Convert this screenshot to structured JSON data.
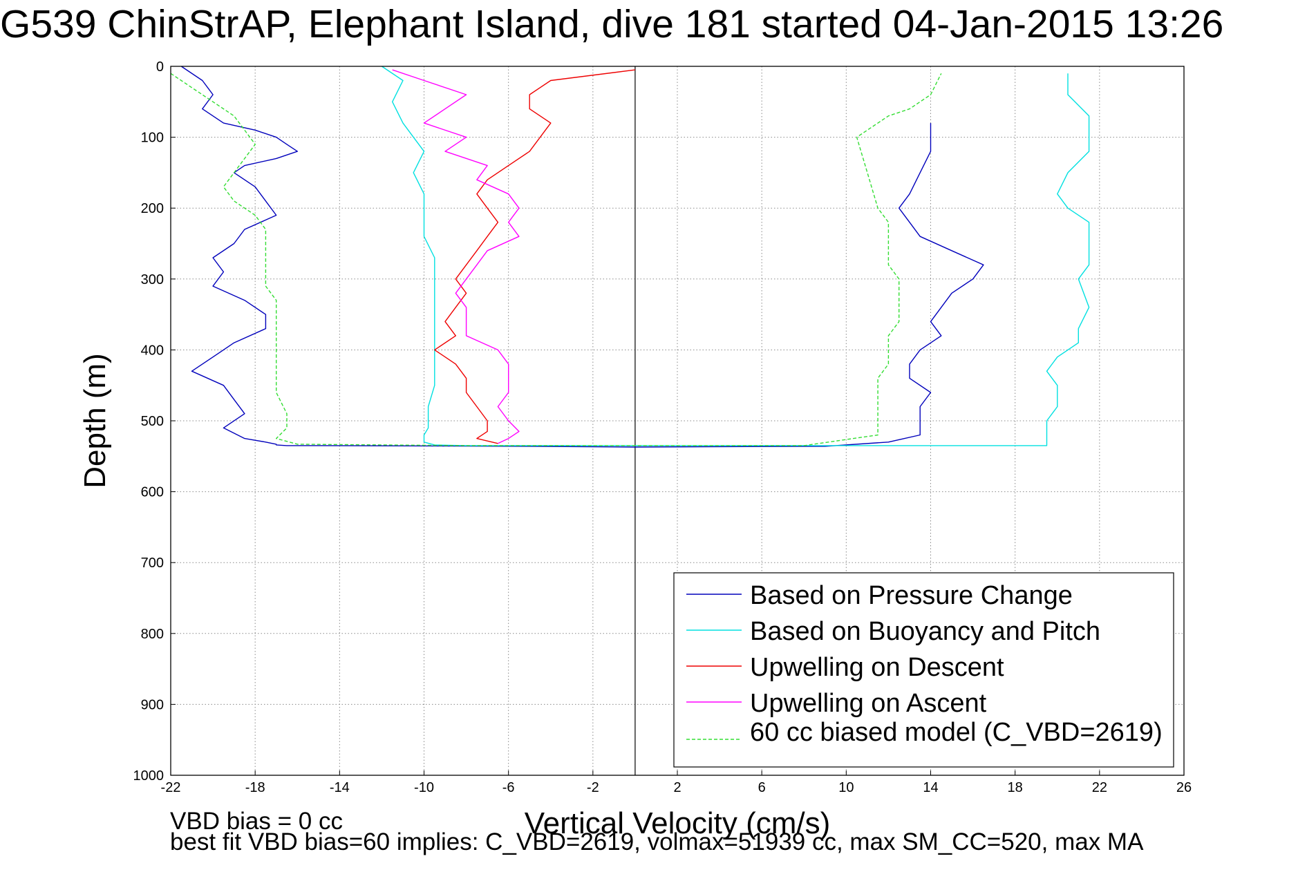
{
  "title": "G539 ChinStrAP, Elephant Island, dive 181 started 04-Jan-2015 13:26",
  "footer": {
    "line1": "VBD bias = 0 cc",
    "line2": "best fit VBD bias=60 implies: C_VBD=2619, volmax=51939 cc, max SM_CC=520, max MA"
  },
  "chart_data": {
    "type": "line",
    "title": "G539 ChinStrAP, Elephant Island, dive 181 started 04-Jan-2015 13:26",
    "xlabel": "Vertical Velocity (cm/s)",
    "ylabel": "Depth (m)",
    "xlim": [
      -22,
      26
    ],
    "ylim": [
      0,
      1000
    ],
    "y_reversed": true,
    "xticks": [
      "-22",
      "-18",
      "-14",
      "-10",
      "-6",
      "-2",
      "2",
      "6",
      "10",
      "14",
      "18",
      "22",
      "26"
    ],
    "yticks": [
      "0",
      "100",
      "200",
      "300",
      "400",
      "500",
      "600",
      "700",
      "800",
      "900",
      "1000"
    ],
    "grid": true,
    "legend_position": "bottom-right",
    "zero_line_x": 0,
    "series": [
      {
        "name": "Based on Pressure Change",
        "color": "#0000bb",
        "style": "solid",
        "x": [
          -21.5,
          -20.5,
          -20,
          -20.5,
          -19.5,
          -18,
          -17,
          -16.5,
          -16,
          -17,
          -18.5,
          -19,
          -18,
          -17.5,
          -17,
          -18.5,
          -19,
          -20,
          -19.5,
          -20,
          -18.5,
          -17.5,
          -17.5,
          -19,
          -20,
          -21,
          -19.5,
          -19,
          -18.5,
          -19.5,
          -18.5,
          -17.5,
          -17,
          -17,
          -16.5,
          -15,
          -5,
          0,
          9,
          12,
          13.5,
          13.5,
          13.5,
          14,
          13,
          13,
          13.5,
          14.5,
          14,
          14.5,
          15,
          16,
          16.5,
          15,
          13.5,
          13,
          12.5,
          13,
          13.5,
          14,
          14
        ],
        "y": [
          0,
          20,
          40,
          60,
          80,
          90,
          100,
          110,
          120,
          130,
          140,
          150,
          170,
          190,
          210,
          230,
          250,
          270,
          290,
          310,
          330,
          350,
          370,
          390,
          410,
          430,
          450,
          470,
          490,
          510,
          525,
          530,
          533,
          534,
          535,
          535,
          536,
          537,
          536,
          530,
          520,
          500,
          480,
          460,
          440,
          420,
          400,
          380,
          360,
          340,
          320,
          300,
          280,
          260,
          240,
          220,
          200,
          180,
          150,
          120,
          80
        ]
      },
      {
        "name": "Based on Buoyancy and Pitch",
        "color": "#00e0e0",
        "style": "solid",
        "x": [
          -12,
          -11,
          -11.5,
          -11,
          -10.5,
          -10,
          -10.5,
          -10,
          -10,
          -10,
          -9.5,
          -9.5,
          -9.5,
          -9.5,
          -9.5,
          -9.5,
          -9.5,
          -9.8,
          -9.8,
          -10,
          -10,
          -9.5,
          -8,
          0,
          10,
          19.5,
          19.5,
          19.5,
          20,
          20,
          19.5,
          20,
          21,
          21,
          21.5,
          21,
          21.5,
          21.5,
          21.5,
          20.5,
          20,
          20.5,
          21.5,
          21.5,
          21.5,
          20.5,
          20.5
        ],
        "y": [
          0,
          20,
          50,
          80,
          100,
          120,
          150,
          180,
          210,
          240,
          270,
          300,
          330,
          360,
          390,
          420,
          450,
          480,
          510,
          520,
          530,
          534,
          535,
          535,
          535,
          535,
          520,
          500,
          480,
          450,
          430,
          410,
          390,
          370,
          340,
          300,
          280,
          260,
          220,
          200,
          180,
          150,
          120,
          100,
          70,
          40,
          10
        ]
      },
      {
        "name": "Upwelling on Descent",
        "color": "#ee0000",
        "style": "solid",
        "x": [
          0,
          -4,
          -5,
          -5,
          -4,
          -4.5,
          -5,
          -6,
          -7,
          -7.5,
          -7,
          -6.5,
          -7,
          -7.5,
          -8,
          -8.5,
          -8,
          -8.5,
          -9,
          -8.5,
          -9.5,
          -8.5,
          -8,
          -8,
          -7.5,
          -7,
          -7,
          -7.5,
          -6.5
        ],
        "y": [
          5,
          20,
          40,
          60,
          80,
          100,
          120,
          140,
          160,
          180,
          200,
          220,
          240,
          260,
          280,
          300,
          320,
          340,
          360,
          380,
          400,
          420,
          440,
          460,
          480,
          500,
          515,
          525,
          532
        ]
      },
      {
        "name": "Upwelling on Ascent",
        "color": "#ff00ff",
        "style": "solid",
        "x": [
          -11.5,
          -10,
          -8,
          -9,
          -10,
          -8,
          -9,
          -7,
          -7.5,
          -6,
          -5.5,
          -6,
          -5.5,
          -7,
          -7.5,
          -8,
          -8.5,
          -8,
          -8,
          -8,
          -6.5,
          -6,
          -6,
          -6,
          -6.5,
          -6,
          -5.5,
          -6,
          -6.5
        ],
        "y": [
          5,
          20,
          40,
          60,
          80,
          100,
          120,
          140,
          160,
          180,
          200,
          220,
          240,
          260,
          280,
          300,
          320,
          340,
          360,
          380,
          400,
          420,
          440,
          460,
          480,
          500,
          515,
          525,
          532
        ]
      },
      {
        "name": "60 cc biased model (C_VBD=2619)",
        "color": "#33dd33",
        "style": "dashed",
        "x": [
          -22,
          -21,
          -20,
          -19,
          -18.5,
          -18,
          -18.5,
          -19,
          -19.5,
          -19,
          -18,
          -17.5,
          -17.5,
          -17.5,
          -17.5,
          -17.5,
          -17,
          -17,
          -17,
          -17,
          -17,
          -17,
          -16.5,
          -16.5,
          -17,
          -16,
          -8,
          0,
          8,
          11.5,
          11.5,
          11.5,
          11.5,
          11.5,
          12,
          12,
          12,
          12.5,
          12.5,
          12.5,
          12.5,
          12,
          12,
          12,
          12,
          11.5,
          11,
          10.5,
          12,
          13,
          14,
          14.5
        ],
        "y": [
          10,
          30,
          50,
          70,
          90,
          110,
          130,
          150,
          170,
          190,
          210,
          230,
          250,
          270,
          290,
          310,
          330,
          350,
          370,
          400,
          430,
          460,
          490,
          510,
          525,
          533,
          535,
          535,
          535,
          520,
          500,
          480,
          460,
          440,
          420,
          400,
          380,
          360,
          340,
          320,
          300,
          280,
          260,
          240,
          220,
          200,
          150,
          100,
          70,
          60,
          40,
          10
        ]
      }
    ]
  }
}
